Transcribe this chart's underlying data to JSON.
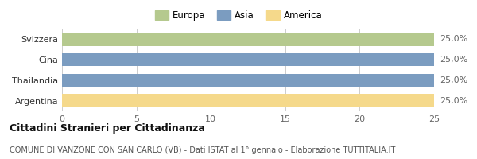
{
  "categories": [
    "Svizzera",
    "Cina",
    "Thailandia",
    "Argentina"
  ],
  "values": [
    25,
    25,
    25,
    25
  ],
  "bar_colors": [
    "#b5c98e",
    "#7b9cc0",
    "#7b9cc0",
    "#f5d98b"
  ],
  "value_labels": [
    "25,0%",
    "25,0%",
    "25,0%",
    "25,0%"
  ],
  "xlim": [
    0,
    25
  ],
  "xticks": [
    0,
    5,
    10,
    15,
    20,
    25
  ],
  "legend_labels": [
    "Europa",
    "Asia",
    "America"
  ],
  "legend_colors": [
    "#b5c98e",
    "#7b9cc0",
    "#f5d98b"
  ],
  "title": "Cittadini Stranieri per Cittadinanza",
  "subtitle": "COMUNE DI VANZONE CON SAN CARLO (VB) - Dati ISTAT al 1° gennaio - Elaborazione TUTTITALIA.IT",
  "title_fontsize": 9,
  "subtitle_fontsize": 7,
  "label_fontsize": 8,
  "tick_fontsize": 8,
  "legend_fontsize": 8.5,
  "background_color": "#ffffff",
  "grid_color": "#cccccc"
}
